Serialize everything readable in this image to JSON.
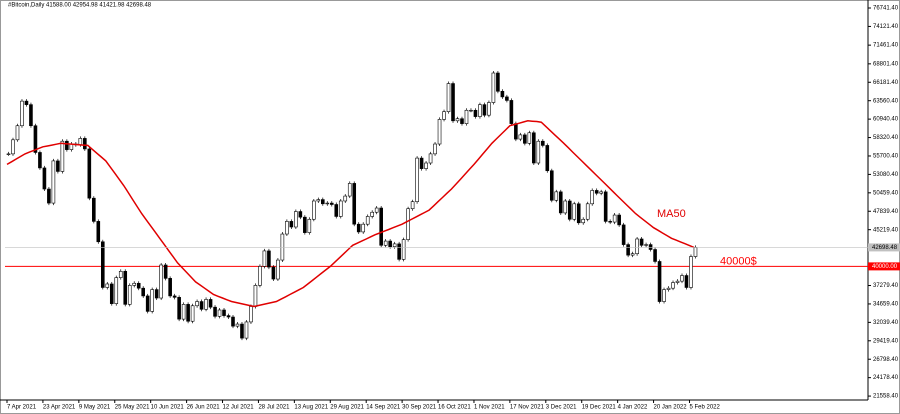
{
  "chart_data": {
    "type": "candlestick",
    "title": "#Bitcoin,Daily  41588.00 42954.98 41421.98 42698.48",
    "categories": [
      "7 Apr 2021",
      null,
      null,
      null,
      null,
      null,
      null,
      null,
      "23 Apr 2021",
      null,
      null,
      null,
      null,
      null,
      null,
      null,
      "9 May 2021",
      null,
      null,
      null,
      null,
      null,
      null,
      null,
      "25 May 2021",
      null,
      null,
      null,
      null,
      null,
      null,
      null,
      "10 Jun 2021",
      null,
      null,
      null,
      null,
      null,
      null,
      null,
      "26 Jun 2021",
      null,
      null,
      null,
      null,
      null,
      null,
      null,
      "12 Jul 2021",
      null,
      null,
      null,
      null,
      null,
      null,
      null,
      "28 Jul 2021",
      null,
      null,
      null,
      null,
      null,
      null,
      null,
      "13 Aug 2021",
      null,
      null,
      null,
      null,
      null,
      null,
      null,
      "29 Aug 2021",
      null,
      null,
      null,
      null,
      null,
      null,
      null,
      "14 Sep 2021",
      null,
      null,
      null,
      null,
      null,
      null,
      null,
      "30 Sep 2021",
      null,
      null,
      null,
      null,
      null,
      null,
      null,
      "16 Oct 2021",
      null,
      null,
      null,
      null,
      null,
      null,
      null,
      "1 Nov 2021",
      null,
      null,
      null,
      null,
      null,
      null,
      null,
      "17 Nov 2021",
      null,
      null,
      null,
      null,
      null,
      null,
      null,
      "3 Dec 2021",
      null,
      null,
      null,
      null,
      null,
      null,
      null,
      "19 Dec 2021",
      null,
      null,
      null,
      null,
      null,
      null,
      null,
      "4 Jan 2022",
      null,
      null,
      null,
      null,
      null,
      null,
      null,
      "20 Jan 2022",
      null,
      null,
      null,
      null,
      null,
      null,
      null,
      "5 Feb 2022",
      null
    ],
    "values": [
      56000,
      58000,
      60000,
      63500,
      63000,
      60000,
      56200,
      54000,
      51000,
      49000,
      55000,
      53500,
      57800,
      56600,
      57400,
      57300,
      58200,
      56700,
      49700,
      46400,
      43500,
      37000,
      37500,
      34700,
      38400,
      39300,
      34600,
      37300,
      37600,
      36900,
      35800,
      33600,
      36700,
      35500,
      40200,
      38300,
      35800,
      35600,
      32500,
      34600,
      32200,
      34400,
      35000,
      33900,
      35300,
      34200,
      32900,
      33800,
      33000,
      32800,
      31500,
      31800,
      29800,
      32100,
      34300,
      37300,
      40000,
      42200,
      39900,
      38200,
      40900,
      44600,
      46400,
      45600,
      47800,
      47000,
      44800,
      46700,
      49300,
      49500,
      48900,
      49000,
      48800,
      47100,
      49300,
      50000,
      51800,
      46000,
      44900,
      46000,
      47100,
      47700,
      48300,
      43000,
      43600,
      42800,
      43200,
      41000,
      43800,
      48200,
      49200,
      55400,
      53900,
      54700,
      56000,
      57400,
      60900,
      62000,
      66000,
      60700,
      61000,
      60300,
      62200,
      62200,
      61300,
      63000,
      61500,
      63300,
      67500,
      64900,
      64100,
      63600,
      60300,
      58100,
      58700,
      57500,
      59000,
      54700,
      57800,
      57200,
      53600,
      49400,
      50600,
      47600,
      49300,
      46700,
      48900,
      46200,
      46700,
      48900,
      50800,
      50400,
      50600,
      46400,
      46300,
      47300,
      45900,
      43100,
      41600,
      41800,
      43900,
      43000,
      43100,
      42400,
      40700,
      35000,
      36700,
      36900,
      37700,
      37900,
      38700,
      37000,
      41400,
      42698.48
    ],
    "up_color": "#ffffff",
    "down_color": "#000000",
    "overlays": [
      {
        "name": "MA50",
        "color": "#e00000",
        "values": [
          54500,
          54875,
          55250,
          55625,
          56000,
          56250,
          56500,
          56750,
          57000,
          57125,
          57250,
          57375,
          57500,
          57450,
          57400,
          57350,
          57300,
          57250,
          57200,
          56650,
          56100,
          55550,
          55000,
          54125,
          53250,
          52375,
          51500,
          50500,
          49500,
          48500,
          47500,
          46625,
          45750,
          44875,
          44000,
          43125,
          42250,
          41375,
          40500,
          39825,
          39150,
          38475,
          37800,
          37350,
          36900,
          36450,
          36000,
          35750,
          35500,
          35250,
          35000,
          34860,
          34720,
          34580,
          34440,
          34300,
          34440,
          34580,
          34720,
          34860,
          35000,
          35333,
          35667,
          36000,
          36333,
          36667,
          37000,
          37500,
          38000,
          38500,
          39000,
          39500,
          40000,
          40600,
          41200,
          41800,
          42400,
          43000,
          43300,
          43600,
          43900,
          44200,
          44500,
          44750,
          45000,
          45250,
          45500,
          45750,
          46000,
          46333,
          46667,
          47000,
          47333,
          47667,
          48000,
          48600,
          49200,
          49800,
          50400,
          51000,
          51700,
          52400,
          53100,
          53800,
          54500,
          55250,
          56000,
          56750,
          57500,
          58125,
          58750,
          59375,
          60000,
          60175,
          60350,
          60525,
          60700,
          60650,
          60600,
          60500,
          59900,
          59300,
          58700,
          58100,
          57500,
          56875,
          56250,
          55625,
          55000,
          54375,
          53750,
          53125,
          52500,
          51875,
          51250,
          50625,
          50000,
          49375,
          48750,
          48125,
          47500,
          47000,
          46500,
          46000,
          45500,
          45125,
          44750,
          44375,
          44000,
          43740,
          43480,
          43220,
          42960,
          42700
        ]
      }
    ],
    "hlines": [
      {
        "value": 40000,
        "label": "40000.00",
        "text": "40000$",
        "color": "#ff0000"
      }
    ],
    "price_tag": {
      "value": 42698.48,
      "label": "42698.48"
    },
    "ylim": [
      21000,
      77880
    ],
    "yticks": [
      {
        "value": 76741.4,
        "label": "76741.40"
      },
      {
        "value": 74121.4,
        "label": "74121.40"
      },
      {
        "value": 71461.4,
        "label": "71461.40"
      },
      {
        "value": 68801.4,
        "label": "68801.40"
      },
      {
        "value": 66181.4,
        "label": "66181.40"
      },
      {
        "value": 63560.4,
        "label": "63560.40"
      },
      {
        "value": 60940.4,
        "label": "60940.40"
      },
      {
        "value": 58320.4,
        "label": "58320.40"
      },
      {
        "value": 55700.4,
        "label": "55700.40"
      },
      {
        "value": 53080.4,
        "label": "53080.40"
      },
      {
        "value": 50459.4,
        "label": "50459.40"
      },
      {
        "value": 47839.4,
        "label": "47839.40"
      },
      {
        "value": 45219.4,
        "label": "45219.40"
      },
      {
        "value": 37279.4,
        "label": "37279.40"
      },
      {
        "value": 34659.4,
        "label": "34659.40"
      },
      {
        "value": 32039.4,
        "label": "32039.40"
      },
      {
        "value": 29419.4,
        "label": "29419.40"
      },
      {
        "value": 26798.4,
        "label": "26798.40"
      },
      {
        "value": 24178.4,
        "label": "24178.40"
      },
      {
        "value": 21558.4,
        "label": "21558.40"
      }
    ]
  }
}
